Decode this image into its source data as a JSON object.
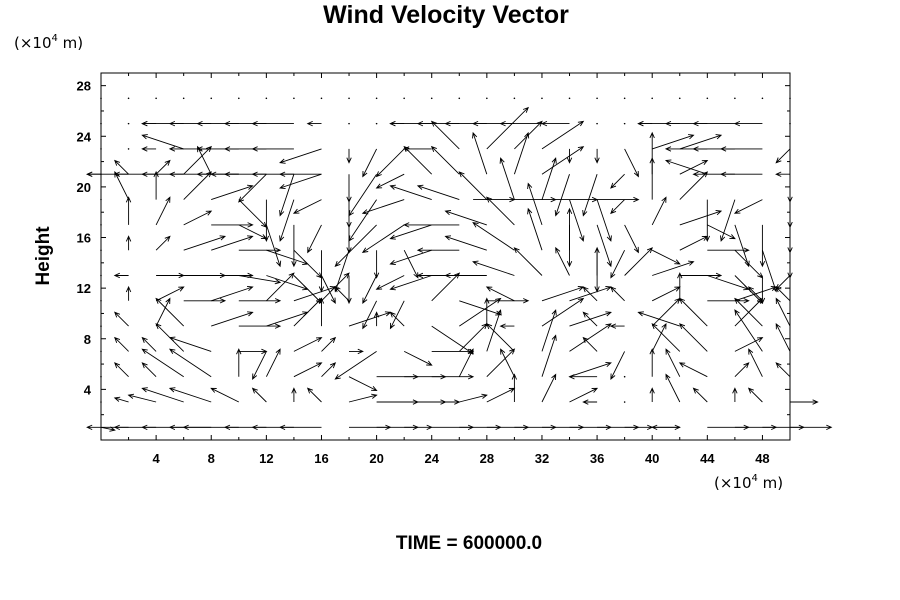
{
  "chart_data": {
    "type": "vector_field",
    "title": "Wind Velocity Vector",
    "ylabel": "Height",
    "xunit": "(×10",
    "yunit": "(×10",
    "unit_exp": "4",
    "unit_tail": " m)",
    "footer": "TIME = 600000.0",
    "xlim": [
      0,
      50
    ],
    "ylim": [
      0,
      29
    ],
    "xticks": [
      "4",
      "8",
      "12",
      "16",
      "20",
      "24",
      "28",
      "32",
      "36",
      "40",
      "44",
      "48"
    ],
    "yticks": [
      "4",
      "8",
      "12",
      "16",
      "20",
      "24",
      "28"
    ],
    "xtick_values": [
      4,
      8,
      12,
      16,
      20,
      24,
      28,
      32,
      36,
      40,
      44,
      48
    ],
    "ytick_values": [
      4,
      8,
      12,
      16,
      20,
      24,
      28
    ],
    "grid": false,
    "field": {
      "x_start": 0,
      "x_step": 2,
      "nx": 26,
      "y_start": 1,
      "y_step": 2,
      "ny": 14,
      "cells": [
        [
          1,
          -0.2
        ],
        [
          -3,
          0
        ],
        [
          -3,
          0
        ],
        [
          -3,
          0
        ],
        [
          -3,
          0
        ],
        [
          -4,
          0
        ],
        [
          -3,
          0
        ],
        [
          -3,
          0
        ],
        [
          -3,
          0
        ],
        [
          3,
          0
        ],
        [
          3,
          0
        ],
        [
          2,
          0
        ],
        [
          3,
          0
        ],
        [
          3,
          0
        ],
        [
          3,
          0
        ],
        [
          3,
          0
        ],
        [
          3,
          0
        ],
        [
          3,
          0
        ],
        [
          3,
          0
        ],
        [
          2,
          0
        ],
        [
          2,
          0
        ],
        [
          -2,
          0
        ],
        [
          3,
          0
        ],
        [
          3,
          0
        ],
        [
          3,
          0
        ],
        [
          3,
          0
        ],
        [
          0,
          0
        ],
        [
          -1,
          0.3
        ],
        [
          -2,
          0.5
        ],
        [
          -3,
          1
        ],
        [
          -3,
          1
        ],
        [
          -2,
          1
        ],
        [
          -1,
          1
        ],
        [
          0,
          1
        ],
        [
          -1,
          1
        ],
        [
          2,
          0.5
        ],
        [
          3,
          0
        ],
        [
          3,
          0
        ],
        [
          2,
          0
        ],
        [
          2,
          0.5
        ],
        [
          2,
          1
        ],
        [
          0,
          2
        ],
        [
          1,
          2
        ],
        [
          2,
          1
        ],
        [
          -1,
          0
        ],
        [
          0,
          0
        ],
        [
          0,
          1
        ],
        [
          -1,
          2
        ],
        [
          -1,
          1
        ],
        [
          0,
          1
        ],
        [
          -1,
          1
        ],
        [
          2,
          0
        ],
        [
          0,
          0
        ],
        [
          -1,
          1
        ],
        [
          -1,
          1
        ],
        [
          -3,
          2
        ],
        [
          -3,
          2
        ],
        [
          0,
          2
        ],
        [
          1,
          2
        ],
        [
          2,
          1
        ],
        [
          1,
          1
        ],
        [
          2,
          -1
        ],
        [
          3,
          0
        ],
        [
          3,
          0
        ],
        [
          3,
          0
        ],
        [
          1,
          2
        ],
        [
          2,
          2
        ],
        [
          -1,
          2
        ],
        [
          1,
          3
        ],
        [
          3,
          1
        ],
        [
          -2,
          0
        ],
        [
          0,
          0
        ],
        [
          0,
          2
        ],
        [
          -1,
          2
        ],
        [
          -2,
          1
        ],
        [
          1,
          1
        ],
        [
          -1,
          2
        ],
        [
          -1,
          1
        ],
        [
          0,
          0
        ],
        [
          -1,
          1
        ],
        [
          -1,
          1
        ],
        [
          -2,
          2
        ],
        [
          -3,
          1
        ],
        [
          2,
          0
        ],
        [
          -1,
          -2
        ],
        [
          2,
          1
        ],
        [
          1,
          1
        ],
        [
          1,
          0
        ],
        [
          -3,
          -2
        ],
        [
          2,
          -1
        ],
        [
          3,
          0
        ],
        [
          2,
          2
        ],
        [
          1,
          3
        ],
        [
          -2,
          2
        ],
        [
          1,
          3
        ],
        [
          3,
          2
        ],
        [
          -1,
          1
        ],
        [
          -1,
          -2
        ],
        [
          1,
          2
        ],
        [
          -2,
          2
        ],
        [
          -2,
          2
        ],
        [
          2,
          1
        ],
        [
          -2,
          3
        ],
        [
          -1,
          2
        ],
        [
          0,
          0
        ],
        [
          -1,
          1
        ],
        [
          1,
          2
        ],
        [
          -2,
          2
        ],
        [
          3,
          1
        ],
        [
          3,
          0
        ],
        [
          3,
          1
        ],
        [
          2,
          2
        ],
        [
          0,
          2
        ],
        [
          3,
          1
        ],
        [
          0,
          1
        ],
        [
          -1,
          1
        ],
        [
          3,
          -2
        ],
        [
          3,
          2
        ],
        [
          0,
          2
        ],
        [
          -1,
          0
        ],
        [
          3,
          2
        ],
        [
          3,
          1
        ],
        [
          -1,
          1
        ],
        [
          -1,
          0
        ],
        [
          2,
          2
        ],
        [
          -3,
          1
        ],
        [
          -2,
          2
        ],
        [
          2,
          2
        ],
        [
          -2,
          2
        ],
        [
          -1,
          2
        ],
        [
          0,
          0
        ],
        [
          0,
          1
        ],
        [
          2,
          1
        ],
        [
          3,
          0
        ],
        [
          3,
          1
        ],
        [
          3,
          0
        ],
        [
          2,
          2
        ],
        [
          3,
          1
        ],
        [
          2,
          2
        ],
        [
          -1,
          1
        ],
        [
          -1,
          -2
        ],
        [
          -1,
          -2
        ],
        [
          2,
          2
        ],
        [
          3,
          -1
        ],
        [
          3,
          0
        ],
        [
          -2,
          1
        ],
        [
          3,
          1
        ],
        [
          3,
          1
        ],
        [
          -1,
          1
        ],
        [
          -1,
          1
        ],
        [
          2,
          1
        ],
        [
          0,
          2
        ],
        [
          3,
          0
        ],
        [
          3,
          1
        ],
        [
          -1,
          1
        ],
        [
          -1,
          1
        ],
        [
          0,
          0
        ],
        [
          -1,
          0
        ],
        [
          2,
          0
        ],
        [
          3,
          0
        ],
        [
          3,
          0
        ],
        [
          3,
          -0.5
        ],
        [
          3,
          -1
        ],
        [
          2,
          -2
        ],
        [
          1,
          -2
        ],
        [
          0,
          -2
        ],
        [
          -1,
          -2
        ],
        [
          -2,
          -1
        ],
        [
          -3,
          -1
        ],
        [
          -3,
          0
        ],
        [
          -3,
          0
        ],
        [
          -3,
          1
        ],
        [
          -2,
          2
        ],
        [
          -1,
          2
        ],
        [
          0,
          2
        ],
        [
          2,
          2
        ],
        [
          3,
          1
        ],
        [
          3,
          0
        ],
        [
          3,
          -1
        ],
        [
          2,
          -2
        ],
        [
          0,
          -2
        ],
        [
          -1,
          -1
        ],
        [
          0,
          0
        ],
        [
          0,
          1
        ],
        [
          1,
          1
        ],
        [
          3,
          1
        ],
        [
          3,
          1
        ],
        [
          3,
          0
        ],
        [
          3,
          -1
        ],
        [
          2,
          -2
        ],
        [
          0,
          -3
        ],
        [
          -1,
          -3
        ],
        [
          0,
          -2
        ],
        [
          1,
          -2
        ],
        [
          -3,
          -1
        ],
        [
          -3,
          0
        ],
        [
          -3,
          1
        ],
        [
          -3,
          2
        ],
        [
          -1,
          3
        ],
        [
          0,
          3
        ],
        [
          0,
          -3
        ],
        [
          -1,
          -2
        ],
        [
          2,
          -1
        ],
        [
          2,
          1
        ],
        [
          3,
          0
        ],
        [
          2,
          -2
        ],
        [
          1,
          -3
        ],
        [
          0,
          -2
        ],
        [
          0,
          0
        ],
        [
          0,
          2
        ],
        [
          1,
          2
        ],
        [
          2,
          1
        ],
        [
          3,
          0
        ],
        [
          2,
          -1
        ],
        [
          1,
          -3
        ],
        [
          0,
          -3
        ],
        [
          -1,
          -2
        ],
        [
          0,
          -2
        ],
        [
          -3,
          -3
        ],
        [
          -3,
          -2
        ],
        [
          -3,
          -1
        ],
        [
          -4,
          0
        ],
        [
          -3,
          1
        ],
        [
          -2,
          2
        ],
        [
          -1,
          3
        ],
        [
          0,
          -3
        ],
        [
          1,
          -3
        ],
        [
          1,
          -2
        ],
        [
          1,
          2
        ],
        [
          3,
          1
        ],
        [
          2,
          -1
        ],
        [
          1,
          -3
        ],
        [
          0,
          -3
        ],
        [
          0,
          -2
        ],
        [
          0,
          0
        ],
        [
          -1,
          2
        ],
        [
          0,
          2
        ],
        [
          2,
          2
        ],
        [
          3,
          1
        ],
        [
          2,
          -2
        ],
        [
          0,
          -3
        ],
        [
          -1,
          -3
        ],
        [
          -2,
          -1
        ],
        [
          0,
          -2
        ],
        [
          -2,
          -3
        ],
        [
          -3,
          -1
        ],
        [
          -3,
          1
        ],
        [
          -3,
          1
        ],
        [
          -2,
          2
        ],
        [
          -1,
          3
        ],
        [
          1,
          3
        ],
        [
          1,
          -3
        ],
        [
          1,
          -3
        ],
        [
          -1,
          -1
        ],
        [
          0,
          3
        ],
        [
          2,
          2
        ],
        [
          0,
          -3
        ],
        [
          -1,
          -3
        ],
        [
          -2,
          -1
        ],
        [
          0,
          -2
        ],
        [
          0,
          0
        ],
        [
          -1,
          1
        ],
        [
          1,
          1
        ],
        [
          2,
          2
        ],
        [
          -1,
          2
        ],
        [
          -2,
          0
        ],
        [
          -2,
          -2
        ],
        [
          -1,
          -3
        ],
        [
          -3,
          -1
        ],
        [
          0,
          -2
        ],
        [
          -2,
          -3
        ],
        [
          -2,
          -1
        ],
        [
          -2,
          2
        ],
        [
          -2,
          2
        ],
        [
          -1,
          3
        ],
        [
          1,
          3
        ],
        [
          3,
          2
        ],
        [
          -1,
          -3
        ],
        [
          -1,
          -3
        ],
        [
          -1,
          -1
        ],
        [
          0,
          3
        ],
        [
          2,
          1
        ],
        [
          -3,
          1
        ],
        [
          -3,
          0
        ],
        [
          -3,
          0
        ],
        [
          0,
          -2
        ],
        [
          0,
          0
        ],
        [
          0,
          0
        ],
        [
          -1,
          0
        ],
        [
          -3,
          1
        ],
        [
          -3,
          0
        ],
        [
          -3,
          0
        ],
        [
          -3,
          0
        ],
        [
          -3,
          0
        ],
        [
          -3,
          -1
        ],
        [
          0,
          -1
        ],
        [
          -1,
          -2
        ],
        [
          -2,
          -2
        ],
        [
          -2,
          0
        ],
        [
          -2,
          2
        ],
        [
          3,
          3
        ],
        [
          2,
          2
        ],
        [
          3,
          2
        ],
        [
          0,
          -1
        ],
        [
          0,
          -1
        ],
        [
          1,
          -2
        ],
        [
          3,
          1
        ],
        [
          3,
          1
        ],
        [
          -3,
          0
        ],
        [
          -3,
          0
        ],
        [
          -3,
          0
        ],
        [
          -1,
          -1
        ],
        [
          0,
          0
        ],
        [
          0,
          0
        ],
        [
          -1,
          0
        ],
        [
          -3,
          0
        ],
        [
          -3,
          0
        ],
        [
          -3,
          0
        ],
        [
          -3,
          0
        ],
        [
          -3,
          0
        ],
        [
          -1,
          0
        ],
        [
          0,
          0
        ],
        [
          0,
          0
        ],
        [
          -1,
          0
        ],
        [
          -3,
          0
        ],
        [
          -3,
          0
        ],
        [
          -3,
          0
        ],
        [
          -3,
          0
        ],
        [
          -3,
          0
        ],
        [
          -2,
          0
        ],
        [
          0,
          0
        ],
        [
          0,
          0
        ],
        [
          -1,
          0
        ],
        [
          -3,
          0
        ],
        [
          -3,
          0
        ],
        [
          -3,
          0
        ],
        [
          -2,
          0
        ],
        [
          0,
          0
        ],
        [
          0,
          0
        ],
        [
          0,
          0
        ],
        [
          0,
          0
        ],
        [
          0,
          0
        ],
        [
          0,
          0
        ],
        [
          0,
          0
        ],
        [
          0,
          0
        ],
        [
          0,
          0
        ],
        [
          0,
          0
        ],
        [
          0,
          0
        ],
        [
          0,
          0
        ],
        [
          0,
          0
        ],
        [
          0,
          0
        ],
        [
          0,
          0
        ],
        [
          0,
          0
        ],
        [
          0,
          0
        ],
        [
          0,
          0
        ],
        [
          0,
          0
        ],
        [
          0,
          0
        ],
        [
          0,
          0
        ],
        [
          0,
          0
        ],
        [
          0,
          0
        ],
        [
          0,
          0
        ],
        [
          0,
          0
        ],
        [
          0,
          0
        ],
        [
          0,
          0
        ]
      ]
    },
    "overlay_vectors": [
      {
        "x": 0,
        "y": 21,
        "u": -1,
        "v": 0
      },
      {
        "x": 2,
        "y": 21,
        "u": -3,
        "v": 0
      },
      {
        "x": 4,
        "y": 21,
        "u": -3,
        "v": 0
      },
      {
        "x": 6,
        "y": 21,
        "u": -3,
        "v": 0
      },
      {
        "x": 8,
        "y": 21,
        "u": -3,
        "v": 0
      },
      {
        "x": 10,
        "y": 21,
        "u": -3,
        "v": 0
      },
      {
        "x": 12,
        "y": 21,
        "u": -3,
        "v": 0
      },
      {
        "x": 14,
        "y": 21,
        "u": -3,
        "v": 0
      },
      {
        "x": 16,
        "y": 21,
        "u": -3,
        "v": 0
      },
      {
        "x": 50,
        "y": 21,
        "u": -1,
        "v": 0
      },
      {
        "x": 27,
        "y": 19,
        "u": 3,
        "v": 0
      },
      {
        "x": 30,
        "y": 19,
        "u": 3,
        "v": 0
      },
      {
        "x": 33,
        "y": 19,
        "u": 3,
        "v": 0
      },
      {
        "x": 36,
        "y": 19,
        "u": 3,
        "v": 0
      }
    ],
    "vector_scale": 1
  }
}
